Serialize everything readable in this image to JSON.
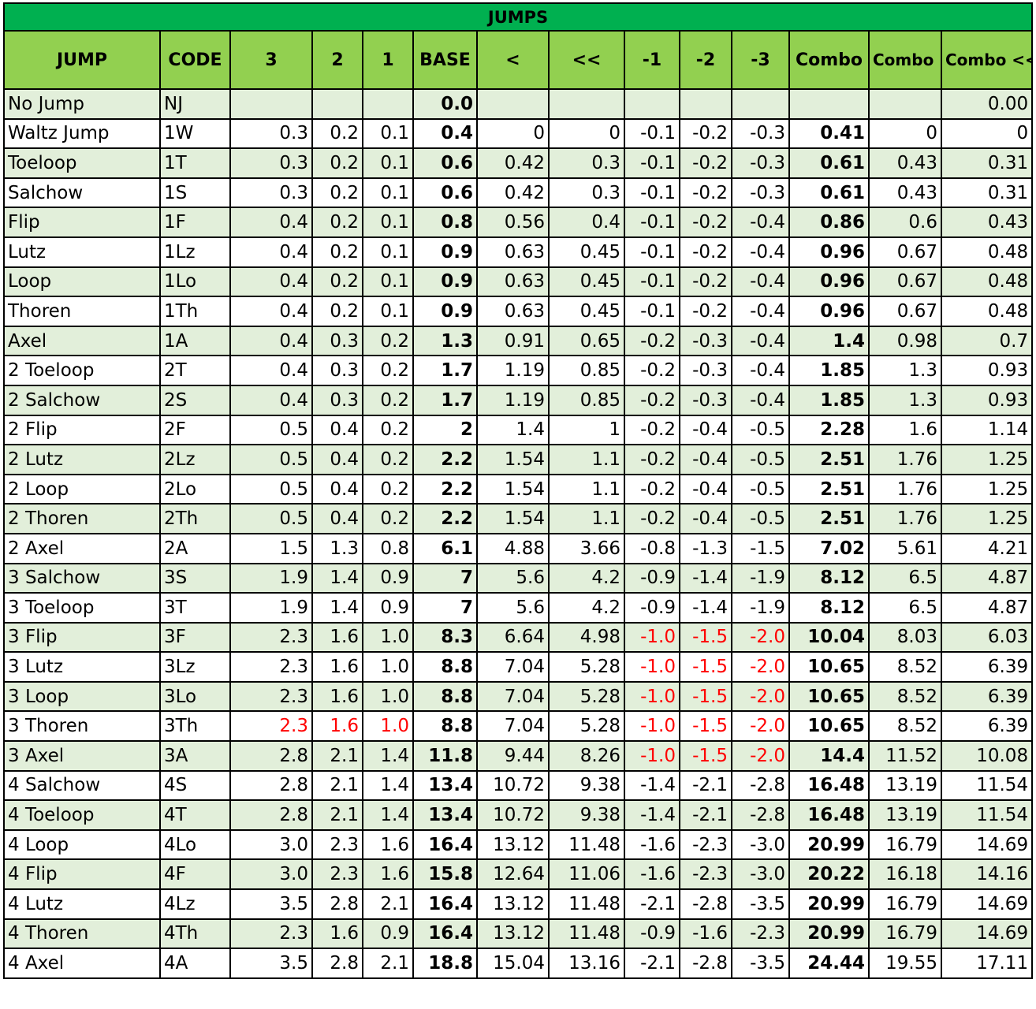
{
  "title": "JUMPS",
  "headers": [
    "JUMP",
    "CODE",
    "3",
    "2",
    "1",
    "BASE",
    "<",
    "<<",
    "-1",
    "-2",
    "-3",
    "Combo",
    "Combo <",
    "Combo <<"
  ],
  "rows": [
    {
      "jump": "No Jump",
      "code": "NJ",
      "g3": "",
      "g2": "",
      "g1": "",
      "base": "0.0",
      "ur": "",
      "dg": "",
      "m1": "",
      "m2": "",
      "m3": "",
      "combo": "",
      "combo_ur": "",
      "combo_dg": "0.00"
    },
    {
      "jump": "Waltz Jump",
      "code": "1W",
      "g3": "0.3",
      "g2": "0.2",
      "g1": "0.1",
      "base": "0.4",
      "ur": "0",
      "dg": "0",
      "m1": "-0.1",
      "m2": "-0.2",
      "m3": "-0.3",
      "combo": "0.41",
      "combo_ur": "0",
      "combo_dg": "0"
    },
    {
      "jump": "Toeloop",
      "code": "1T",
      "g3": "0.3",
      "g2": "0.2",
      "g1": "0.1",
      "base": "0.6",
      "ur": "0.42",
      "dg": "0.3",
      "m1": "-0.1",
      "m2": "-0.2",
      "m3": "-0.3",
      "combo": "0.61",
      "combo_ur": "0.43",
      "combo_dg": "0.31"
    },
    {
      "jump": "Salchow",
      "code": "1S",
      "g3": "0.3",
      "g2": "0.2",
      "g1": "0.1",
      "base": "0.6",
      "ur": "0.42",
      "dg": "0.3",
      "m1": "-0.1",
      "m2": "-0.2",
      "m3": "-0.3",
      "combo": "0.61",
      "combo_ur": "0.43",
      "combo_dg": "0.31"
    },
    {
      "jump": "Flip",
      "code": "1F",
      "g3": "0.4",
      "g2": "0.2",
      "g1": "0.1",
      "base": "0.8",
      "ur": "0.56",
      "dg": "0.4",
      "m1": "-0.1",
      "m2": "-0.2",
      "m3": "-0.4",
      "combo": "0.86",
      "combo_ur": "0.6",
      "combo_dg": "0.43"
    },
    {
      "jump": "Lutz",
      "code": "1Lz",
      "g3": "0.4",
      "g2": "0.2",
      "g1": "0.1",
      "base": "0.9",
      "ur": "0.63",
      "dg": "0.45",
      "m1": "-0.1",
      "m2": "-0.2",
      "m3": "-0.4",
      "combo": "0.96",
      "combo_ur": "0.67",
      "combo_dg": "0.48"
    },
    {
      "jump": "Loop",
      "code": "1Lo",
      "g3": "0.4",
      "g2": "0.2",
      "g1": "0.1",
      "base": "0.9",
      "ur": "0.63",
      "dg": "0.45",
      "m1": "-0.1",
      "m2": "-0.2",
      "m3": "-0.4",
      "combo": "0.96",
      "combo_ur": "0.67",
      "combo_dg": "0.48"
    },
    {
      "jump": "Thoren",
      "code": "1Th",
      "g3": "0.4",
      "g2": "0.2",
      "g1": "0.1",
      "base": "0.9",
      "ur": "0.63",
      "dg": "0.45",
      "m1": "-0.1",
      "m2": "-0.2",
      "m3": "-0.4",
      "combo": "0.96",
      "combo_ur": "0.67",
      "combo_dg": "0.48"
    },
    {
      "jump": "Axel",
      "code": "1A",
      "g3": "0.4",
      "g2": "0.3",
      "g1": "0.2",
      "base": "1.3",
      "ur": "0.91",
      "dg": "0.65",
      "m1": "-0.2",
      "m2": "-0.3",
      "m3": "-0.4",
      "combo": "1.4",
      "combo_ur": "0.98",
      "combo_dg": "0.7"
    },
    {
      "jump": "2 Toeloop",
      "code": "2T",
      "g3": "0.4",
      "g2": "0.3",
      "g1": "0.2",
      "base": "1.7",
      "ur": "1.19",
      "dg": "0.85",
      "m1": "-0.2",
      "m2": "-0.3",
      "m3": "-0.4",
      "combo": "1.85",
      "combo_ur": "1.3",
      "combo_dg": "0.93"
    },
    {
      "jump": "2 Salchow",
      "code": "2S",
      "g3": "0.4",
      "g2": "0.3",
      "g1": "0.2",
      "base": "1.7",
      "ur": "1.19",
      "dg": "0.85",
      "m1": "-0.2",
      "m2": "-0.3",
      "m3": "-0.4",
      "combo": "1.85",
      "combo_ur": "1.3",
      "combo_dg": "0.93"
    },
    {
      "jump": "2 Flip",
      "code": "2F",
      "g3": "0.5",
      "g2": "0.4",
      "g1": "0.2",
      "base": "2",
      "ur": "1.4",
      "dg": "1",
      "m1": "-0.2",
      "m2": "-0.4",
      "m3": "-0.5",
      "combo": "2.28",
      "combo_ur": "1.6",
      "combo_dg": "1.14"
    },
    {
      "jump": "2 Lutz",
      "code": "2Lz",
      "g3": "0.5",
      "g2": "0.4",
      "g1": "0.2",
      "base": "2.2",
      "ur": "1.54",
      "dg": "1.1",
      "m1": "-0.2",
      "m2": "-0.4",
      "m3": "-0.5",
      "combo": "2.51",
      "combo_ur": "1.76",
      "combo_dg": "1.25"
    },
    {
      "jump": "2 Loop",
      "code": "2Lo",
      "g3": "0.5",
      "g2": "0.4",
      "g1": "0.2",
      "base": "2.2",
      "ur": "1.54",
      "dg": "1.1",
      "m1": "-0.2",
      "m2": "-0.4",
      "m3": "-0.5",
      "combo": "2.51",
      "combo_ur": "1.76",
      "combo_dg": "1.25"
    },
    {
      "jump": "2 Thoren",
      "code": "2Th",
      "g3": "0.5",
      "g2": "0.4",
      "g1": "0.2",
      "base": "2.2",
      "ur": "1.54",
      "dg": "1.1",
      "m1": "-0.2",
      "m2": "-0.4",
      "m3": "-0.5",
      "combo": "2.51",
      "combo_ur": "1.76",
      "combo_dg": "1.25"
    },
    {
      "jump": "2 Axel",
      "code": "2A",
      "g3": "1.5",
      "g2": "1.3",
      "g1": "0.8",
      "base": "6.1",
      "ur": "4.88",
      "dg": "3.66",
      "m1": "-0.8",
      "m2": "-1.3",
      "m3": "-1.5",
      "combo": "7.02",
      "combo_ur": "5.61",
      "combo_dg": "4.21"
    },
    {
      "jump": "3 Salchow",
      "code": "3S",
      "g3": "1.9",
      "g2": "1.4",
      "g1": "0.9",
      "base": "7",
      "ur": "5.6",
      "dg": "4.2",
      "m1": "-0.9",
      "m2": "-1.4",
      "m3": "-1.9",
      "combo": "8.12",
      "combo_ur": "6.5",
      "combo_dg": "4.87"
    },
    {
      "jump": "3 Toeloop",
      "code": "3T",
      "g3": "1.9",
      "g2": "1.4",
      "g1": "0.9",
      "base": "7",
      "ur": "5.6",
      "dg": "4.2",
      "m1": "-0.9",
      "m2": "-1.4",
      "m3": "-1.9",
      "combo": "8.12",
      "combo_ur": "6.5",
      "combo_dg": "4.87"
    },
    {
      "jump": "3 Flip",
      "code": "3F",
      "g3": "2.3",
      "g2": "1.6",
      "g1": "1.0",
      "base": "8.3",
      "ur": "6.64",
      "dg": "4.98",
      "m1": "-1.0",
      "m2": "-1.5",
      "m3": "-2.0",
      "combo": "10.04",
      "combo_ur": "8.03",
      "combo_dg": "6.03",
      "red": [
        "m1",
        "m2",
        "m3"
      ]
    },
    {
      "jump": "3 Lutz",
      "code": "3Lz",
      "g3": "2.3",
      "g2": "1.6",
      "g1": "1.0",
      "base": "8.8",
      "ur": "7.04",
      "dg": "5.28",
      "m1": "-1.0",
      "m2": "-1.5",
      "m3": "-2.0",
      "combo": "10.65",
      "combo_ur": "8.52",
      "combo_dg": "6.39",
      "red": [
        "m1",
        "m2",
        "m3"
      ]
    },
    {
      "jump": "3 Loop",
      "code": "3Lo",
      "g3": "2.3",
      "g2": "1.6",
      "g1": "1.0",
      "base": "8.8",
      "ur": "7.04",
      "dg": "5.28",
      "m1": "-1.0",
      "m2": "-1.5",
      "m3": "-2.0",
      "combo": "10.65",
      "combo_ur": "8.52",
      "combo_dg": "6.39",
      "red": [
        "m1",
        "m2",
        "m3"
      ]
    },
    {
      "jump": "3 Thoren",
      "code": "3Th",
      "g3": "2.3",
      "g2": "1.6",
      "g1": "1.0",
      "base": "8.8",
      "ur": "7.04",
      "dg": "5.28",
      "m1": "-1.0",
      "m2": "-1.5",
      "m3": "-2.0",
      "combo": "10.65",
      "combo_ur": "8.52",
      "combo_dg": "6.39",
      "red": [
        "g3",
        "g2",
        "g1",
        "m1",
        "m2",
        "m3"
      ]
    },
    {
      "jump": "3 Axel",
      "code": "3A",
      "g3": "2.8",
      "g2": "2.1",
      "g1": "1.4",
      "base": "11.8",
      "ur": "9.44",
      "dg": "8.26",
      "m1": "-1.0",
      "m2": "-1.5",
      "m3": "-2.0",
      "combo": "14.4",
      "combo_ur": "11.52",
      "combo_dg": "10.08",
      "red": [
        "m1",
        "m2",
        "m3"
      ]
    },
    {
      "jump": "4 Salchow",
      "code": "4S",
      "g3": "2.8",
      "g2": "2.1",
      "g1": "1.4",
      "base": "13.4",
      "ur": "10.72",
      "dg": "9.38",
      "m1": "-1.4",
      "m2": "-2.1",
      "m3": "-2.8",
      "combo": "16.48",
      "combo_ur": "13.19",
      "combo_dg": "11.54"
    },
    {
      "jump": "4 Toeloop",
      "code": "4T",
      "g3": "2.8",
      "g2": "2.1",
      "g1": "1.4",
      "base": "13.4",
      "ur": "10.72",
      "dg": "9.38",
      "m1": "-1.4",
      "m2": "-2.1",
      "m3": "-2.8",
      "combo": "16.48",
      "combo_ur": "13.19",
      "combo_dg": "11.54"
    },
    {
      "jump": "4 Loop",
      "code": "4Lo",
      "g3": "3.0",
      "g2": "2.3",
      "g1": "1.6",
      "base": "16.4",
      "ur": "13.12",
      "dg": "11.48",
      "m1": "-1.6",
      "m2": "-2.3",
      "m3": "-3.0",
      "combo": "20.99",
      "combo_ur": "16.79",
      "combo_dg": "14.69"
    },
    {
      "jump": "4 Flip",
      "code": "4F",
      "g3": "3.0",
      "g2": "2.3",
      "g1": "1.6",
      "base": "15.8",
      "ur": "12.64",
      "dg": "11.06",
      "m1": "-1.6",
      "m2": "-2.3",
      "m3": "-3.0",
      "combo": "20.22",
      "combo_ur": "16.18",
      "combo_dg": "14.16"
    },
    {
      "jump": "4 Lutz",
      "code": "4Lz",
      "g3": "3.5",
      "g2": "2.8",
      "g1": "2.1",
      "base": "16.4",
      "ur": "13.12",
      "dg": "11.48",
      "m1": "-2.1",
      "m2": "-2.8",
      "m3": "-3.5",
      "combo": "20.99",
      "combo_ur": "16.79",
      "combo_dg": "14.69"
    },
    {
      "jump": "4 Thoren",
      "code": "4Th",
      "g3": "2.3",
      "g2": "1.6",
      "g1": "0.9",
      "base": "16.4",
      "ur": "13.12",
      "dg": "11.48",
      "m1": "-0.9",
      "m2": "-1.6",
      "m3": "-2.3",
      "combo": "20.99",
      "combo_ur": "16.79",
      "combo_dg": "14.69"
    },
    {
      "jump": "4 Axel",
      "code": "4A",
      "g3": "3.5",
      "g2": "2.8",
      "g1": "2.1",
      "base": "18.8",
      "ur": "15.04",
      "dg": "13.16",
      "m1": "-2.1",
      "m2": "-2.8",
      "m3": "-3.5",
      "combo": "24.44",
      "combo_ur": "19.55",
      "combo_dg": "17.11"
    }
  ]
}
